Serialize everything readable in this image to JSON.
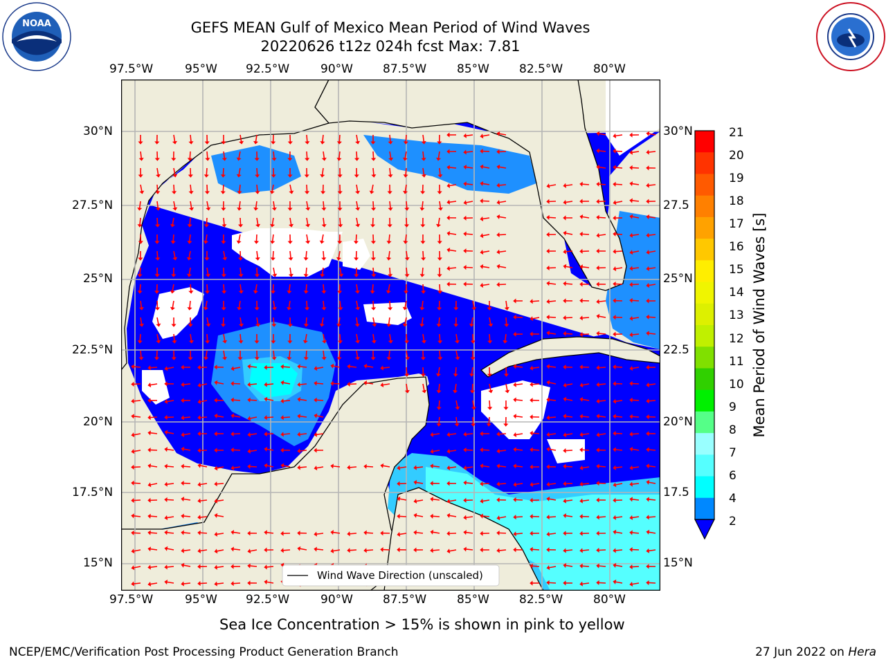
{
  "title": {
    "line1": "GEFS MEAN Gulf of Mexico Mean Period of Wind Waves",
    "line2": "20220626 t12z 024h fcst   Max: 7.81"
  },
  "map": {
    "lon_labels": [
      "97.5°W",
      "95°W",
      "92.5°W",
      "90°W",
      "87.5°W",
      "85°W",
      "82.5°W",
      "80°W"
    ],
    "lat_labels_left": [
      "30°N",
      "27.5°N",
      "25°N",
      "22.5°N",
      "20°N",
      "17.5°N",
      "15°N"
    ],
    "lat_labels_right": [
      "30°N",
      "27.5",
      "25°N",
      "22.5",
      "20°N",
      "17.5",
      "15°N"
    ],
    "legend_text": "Wind Wave Direction (unscaled)",
    "land_color": "#efeddb",
    "water_color": "#0000ff",
    "arrow_color": "#ff0000"
  },
  "colorbar": {
    "label": "Mean Period of Wind Waves [s]",
    "ticks": [
      "21",
      "20",
      "19",
      "18",
      "17",
      "16",
      "15",
      "14",
      "13",
      "12",
      "11",
      "10",
      "9",
      "8",
      "7",
      "6",
      "4",
      "2"
    ],
    "colors": [
      "#ff0000",
      "#ff3300",
      "#ff5a00",
      "#ff8000",
      "#ffa200",
      "#ffc800",
      "#ffee00",
      "#f0f500",
      "#ddf000",
      "#c0f000",
      "#80e000",
      "#30d000",
      "#00f000",
      "#55ff88",
      "#99ffff",
      "#55ffff",
      "#00ffff",
      "#0088ff"
    ]
  },
  "notes": {
    "sea_ice": "Sea Ice Concentration > 15% is shown in pink to yellow"
  },
  "footer": {
    "left": "NCEP/EMC/Verification Post Processing Product Generation Branch",
    "right_prefix": "27 Jun 2022 on ",
    "right_host": "Hera"
  },
  "logos": {
    "noaa_text": "NOAA",
    "nws_text": "NATIONAL WEATHER SERVICE"
  }
}
